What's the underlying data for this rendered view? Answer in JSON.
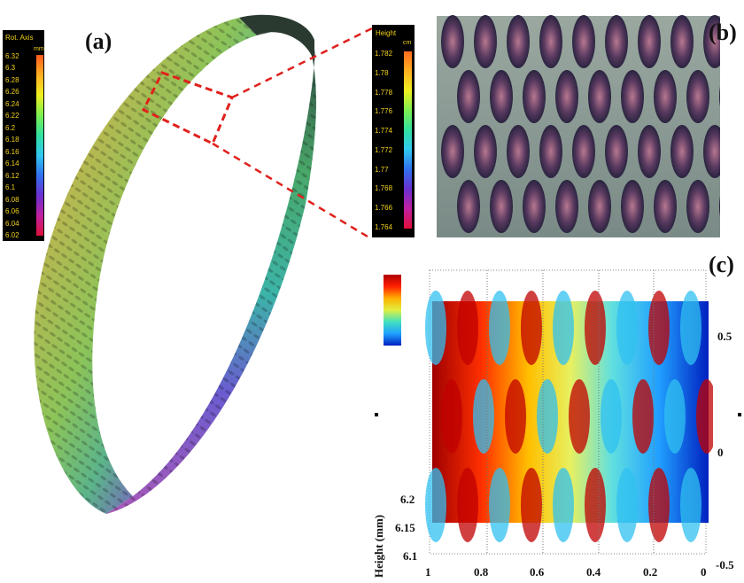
{
  "panels": {
    "a": {
      "label": "(a)"
    },
    "b": {
      "label": "(b)"
    },
    "c": {
      "label": "(c)"
    }
  },
  "colorbar_rot": {
    "title": "Rot. Axis",
    "unit": "mm",
    "ticks": [
      "6.32",
      "6.3",
      "6.28",
      "6.26",
      "6.24",
      "6.22",
      "6.2",
      "6.18",
      "6.16",
      "6.14",
      "6.12",
      "6.1",
      "6.08",
      "6.06",
      "6.04",
      "6.02"
    ]
  },
  "colorbar_height": {
    "title": "Height",
    "unit": "cm",
    "ticks": [
      "1.782",
      "1.78",
      "1.778",
      "1.776",
      "1.774",
      "1.772",
      "1.77",
      "1.768",
      "1.766",
      "1.764"
    ]
  },
  "plot_c": {
    "x_ticks": [
      "1",
      "0.8",
      "0.6",
      "0.4",
      "0.2",
      "0"
    ],
    "y_ticks": [
      "6.2",
      "6.15",
      "6.1"
    ],
    "y_label": "Height (mm)",
    "right_ticks": [
      "0.5",
      "0",
      "-0.5"
    ]
  },
  "colors": {
    "zoom_line": "#e0201c",
    "label_yellow": "#f2d21a"
  }
}
